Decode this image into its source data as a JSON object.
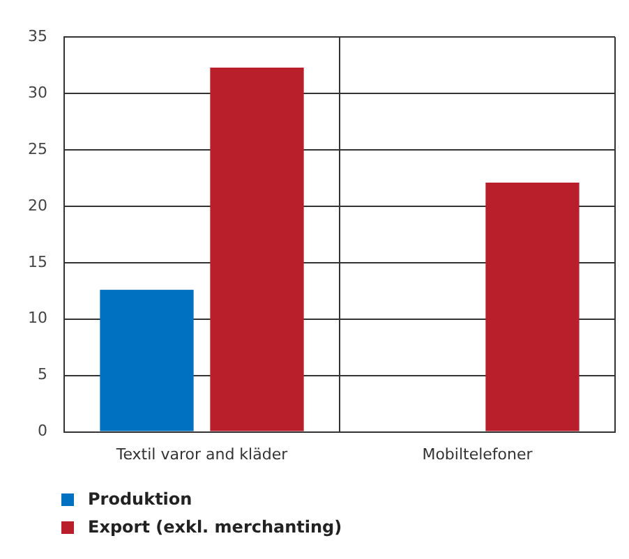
{
  "chart_data": {
    "type": "bar",
    "categories": [
      "Textil varor and kläder",
      "Mobiltelefoner"
    ],
    "series": [
      {
        "name": "Produktion",
        "color": "#0070c0",
        "values": [
          12.6,
          null
        ]
      },
      {
        "name": "Export (exkl. merchanting)",
        "color": "#b91f2b",
        "values": [
          32.3,
          22.1
        ]
      }
    ],
    "ylim": [
      0,
      35
    ],
    "yticks": [
      0,
      5,
      10,
      15,
      20,
      25,
      30,
      35
    ],
    "grid": true,
    "legend": "bottom"
  }
}
